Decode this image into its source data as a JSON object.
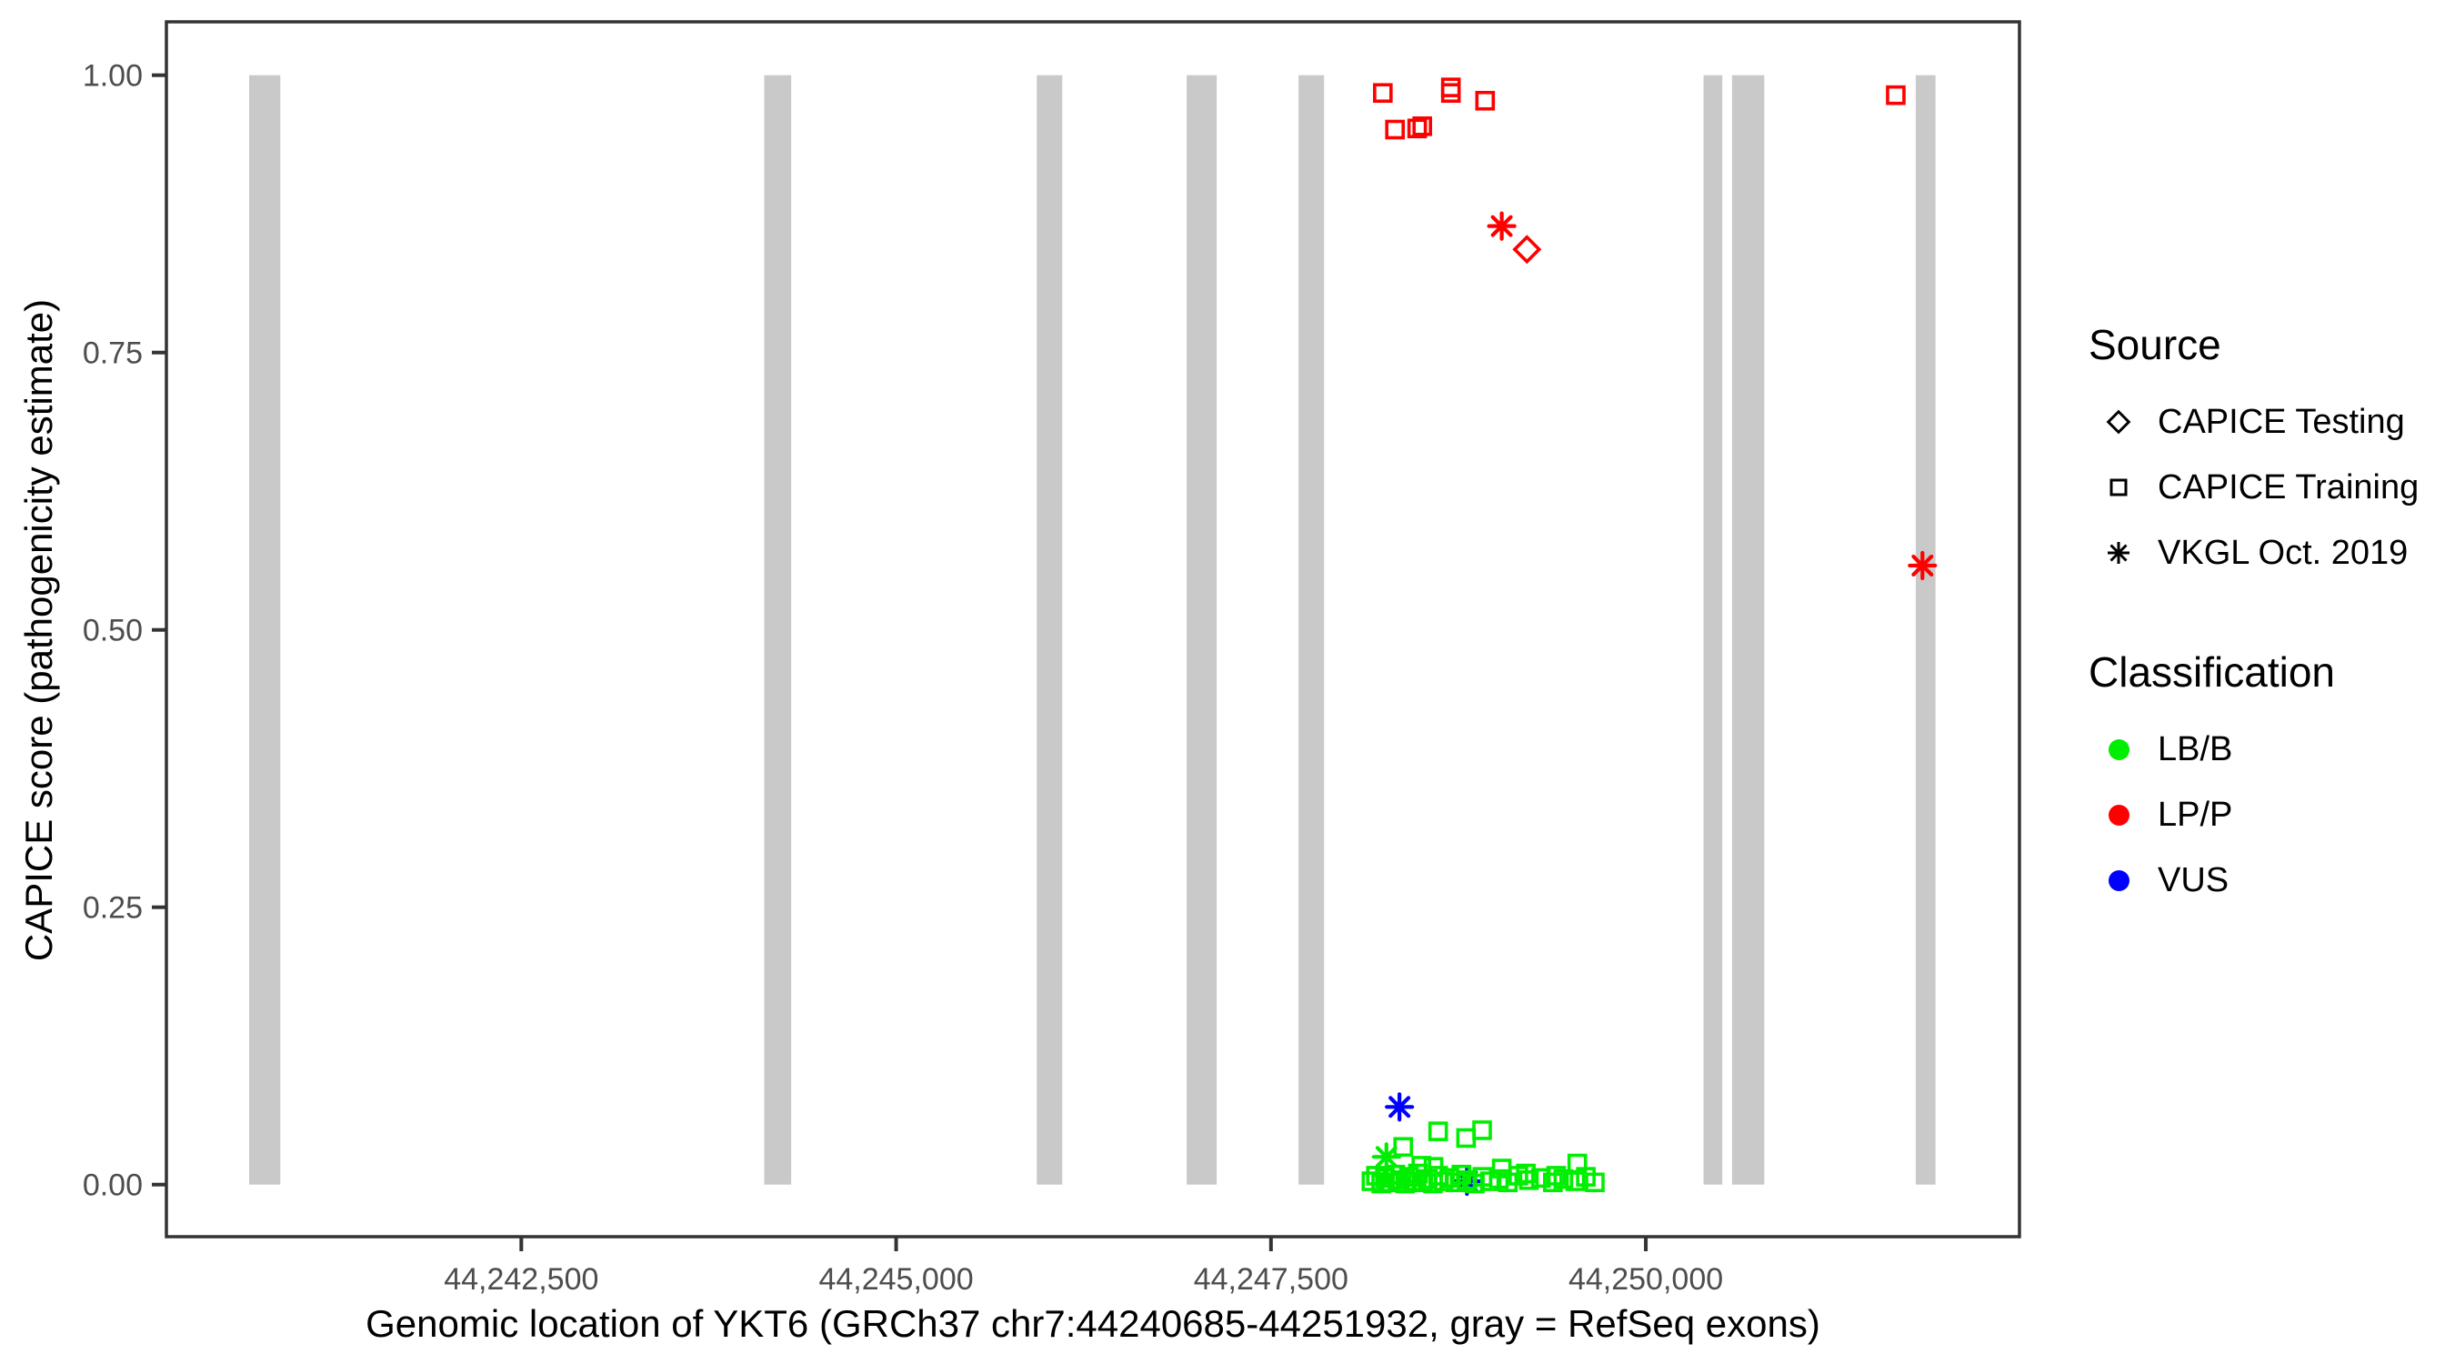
{
  "chart_data": {
    "type": "scatter",
    "xlabel": "Genomic location of YKT6 (GRCh37 chr7:44240685-44251932, gray = RefSeq exons)",
    "ylabel": "CAPICE score (pathogenicity estimate)",
    "x_axis": {
      "domain": [
        44240133,
        44252492
      ],
      "ticks": [
        {
          "bp": 44242500,
          "label": "44,242,500"
        },
        {
          "bp": 44245000,
          "label": "44,245,000"
        },
        {
          "bp": 44247500,
          "label": "44,247,500"
        },
        {
          "bp": 44250000,
          "label": "44,250,000"
        }
      ]
    },
    "y_axis": {
      "domain": [
        -0.047,
        1.048
      ],
      "ticks": [
        {
          "v": 0.0,
          "label": "0.00"
        },
        {
          "v": 0.25,
          "label": "0.25"
        },
        {
          "v": 0.5,
          "label": "0.50"
        },
        {
          "v": 0.75,
          "label": "0.75"
        },
        {
          "v": 1.0,
          "label": "1.00"
        }
      ]
    },
    "exon_color": "#c9c9c9",
    "exons": [
      [
        44240685,
        44240893
      ],
      [
        44244120,
        44244300
      ],
      [
        44245938,
        44246108
      ],
      [
        44246938,
        44247138
      ],
      [
        44247684,
        44247854
      ],
      [
        44250385,
        44250510
      ],
      [
        44250575,
        44250790
      ],
      [
        44251800,
        44251932
      ]
    ],
    "series": [
      {
        "source": "CAPICE Training",
        "classification": "LP/P",
        "marker": "square",
        "color": "#ff0000",
        "points": [
          {
            "x": 44248246,
            "y": 0.984
          },
          {
            "x": 44248700,
            "y": 0.989
          },
          {
            "x": 44248700,
            "y": 0.984
          },
          {
            "x": 44248928,
            "y": 0.977
          },
          {
            "x": 44248327,
            "y": 0.951
          },
          {
            "x": 44248475,
            "y": 0.952
          },
          {
            "x": 44248509,
            "y": 0.954
          },
          {
            "x": 44251667,
            "y": 0.982
          }
        ]
      },
      {
        "source": "CAPICE Testing",
        "classification": "LP/P",
        "marker": "diamond",
        "color": "#ff0000",
        "points": [
          {
            "x": 44249207,
            "y": 0.843
          }
        ]
      },
      {
        "source": "VKGL Oct. 2019",
        "classification": "LP/P",
        "marker": "asterisk",
        "color": "#ff0000",
        "points": [
          {
            "x": 44249039,
            "y": 0.864
          },
          {
            "x": 44251845,
            "y": 0.558
          }
        ]
      },
      {
        "source": "VKGL Oct. 2019",
        "classification": "VUS",
        "marker": "asterisk",
        "color": "#0000ff",
        "points": [
          {
            "x": 44248357,
            "y": 0.07
          },
          {
            "x": 44248807,
            "y": 0.003
          }
        ]
      },
      {
        "source": "VKGL Oct. 2019",
        "classification": "LB/B",
        "marker": "asterisk",
        "color": "#00ee00",
        "points": [
          {
            "x": 44248270,
            "y": 0.025
          }
        ]
      },
      {
        "source": "CAPICE Training",
        "classification": "LB/B",
        "marker": "square",
        "color": "#00ee00",
        "points": [
          {
            "x": 44248615,
            "y": 0.048
          },
          {
            "x": 44248801,
            "y": 0.042
          },
          {
            "x": 44248908,
            "y": 0.049
          },
          {
            "x": 44248382,
            "y": 0.034
          },
          {
            "x": 44248503,
            "y": 0.017
          },
          {
            "x": 44248584,
            "y": 0.016
          },
          {
            "x": 44249039,
            "y": 0.0145
          },
          {
            "x": 44249200,
            "y": 0.01
          },
          {
            "x": 44249402,
            "y": 0.008
          },
          {
            "x": 44249543,
            "y": 0.019
          },
          {
            "x": 44248170,
            "y": 0.003
          },
          {
            "x": 44248200,
            "y": 0.008
          },
          {
            "x": 44248235,
            "y": 0.001
          },
          {
            "x": 44248260,
            "y": 0.006
          },
          {
            "x": 44248300,
            "y": 0.002
          },
          {
            "x": 44248330,
            "y": 0.009
          },
          {
            "x": 44248360,
            "y": 0.004
          },
          {
            "x": 44248395,
            "y": 0.001
          },
          {
            "x": 44248420,
            "y": 0.007
          },
          {
            "x": 44248450,
            "y": 0.003
          },
          {
            "x": 44248480,
            "y": 0.01
          },
          {
            "x": 44248515,
            "y": 0.002
          },
          {
            "x": 44248545,
            "y": 0.005
          },
          {
            "x": 44248580,
            "y": 0.001
          },
          {
            "x": 44248615,
            "y": 0.008
          },
          {
            "x": 44248650,
            "y": 0.003
          },
          {
            "x": 44248690,
            "y": 0.006
          },
          {
            "x": 44248730,
            "y": 0.002
          },
          {
            "x": 44248770,
            "y": 0.009
          },
          {
            "x": 44248810,
            "y": 0.004
          },
          {
            "x": 44248860,
            "y": 0.001
          },
          {
            "x": 44248910,
            "y": 0.007
          },
          {
            "x": 44248960,
            "y": 0.003
          },
          {
            "x": 44249020,
            "y": 0.005
          },
          {
            "x": 44249080,
            "y": 0.002
          },
          {
            "x": 44249150,
            "y": 0.008
          },
          {
            "x": 44249220,
            "y": 0.004
          },
          {
            "x": 44249300,
            "y": 0.006
          },
          {
            "x": 44249380,
            "y": 0.002
          },
          {
            "x": 44249450,
            "y": 0.005
          },
          {
            "x": 44249530,
            "y": 0.003
          },
          {
            "x": 44249600,
            "y": 0.007
          },
          {
            "x": 44249660,
            "y": 0.002
          }
        ]
      }
    ]
  },
  "legend": {
    "source": {
      "title": "Source",
      "items": [
        {
          "label": "CAPICE Testing",
          "marker": "diamond"
        },
        {
          "label": "CAPICE Training",
          "marker": "square"
        },
        {
          "label": "VKGL Oct. 2019",
          "marker": "asterisk"
        }
      ]
    },
    "classification": {
      "title": "Classification",
      "items": [
        {
          "label": "LB/B",
          "color": "#00ee00"
        },
        {
          "label": "LP/P",
          "color": "#ff0000"
        },
        {
          "label": "VUS",
          "color": "#0000ff"
        }
      ]
    }
  }
}
